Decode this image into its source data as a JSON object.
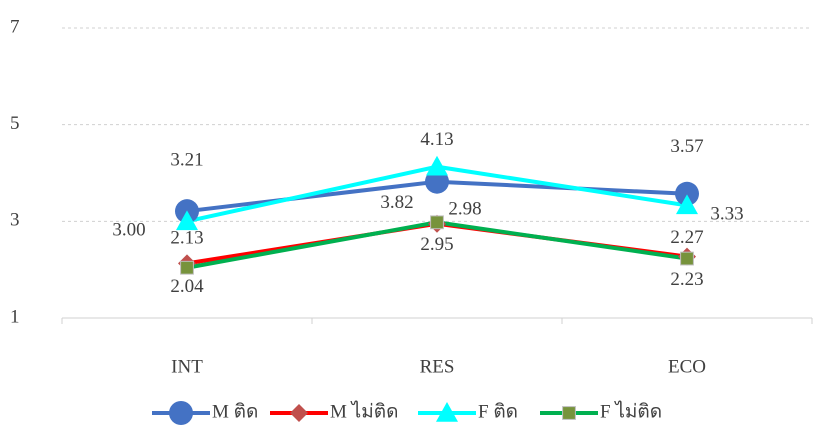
{
  "chart_data": {
    "type": "line",
    "categories": [
      "INT",
      "RES",
      "ECO"
    ],
    "series": [
      {
        "name": "M ติด",
        "color": "#4472c4",
        "marker": "circle",
        "values": [
          3.21,
          3.82,
          3.57
        ],
        "value_labels": [
          "3.21",
          "3.82",
          "3.57"
        ]
      },
      {
        "name": "M ไม่ติด",
        "color": "#ff0000",
        "marker": "diamond",
        "values": [
          2.13,
          2.95,
          2.27
        ],
        "value_labels": [
          "2.13",
          "2.95",
          "2.27"
        ]
      },
      {
        "name": "F ติด",
        "color": "#00ffff",
        "marker": "triangle",
        "values": [
          3,
          4.13,
          3.33
        ],
        "value_labels": [
          "3.00",
          "4.13",
          "3.33"
        ]
      },
      {
        "name": "F ไม่ติด",
        "color": "#00b050",
        "marker": "square",
        "values": [
          2.04,
          2.98,
          2.23
        ],
        "value_labels": [
          "2.04",
          "2.98",
          "2.23"
        ]
      }
    ],
    "ylim": [
      1,
      7
    ],
    "yticks": [
      1,
      3,
      5,
      7
    ],
    "grid": true,
    "legend": "bottom"
  }
}
